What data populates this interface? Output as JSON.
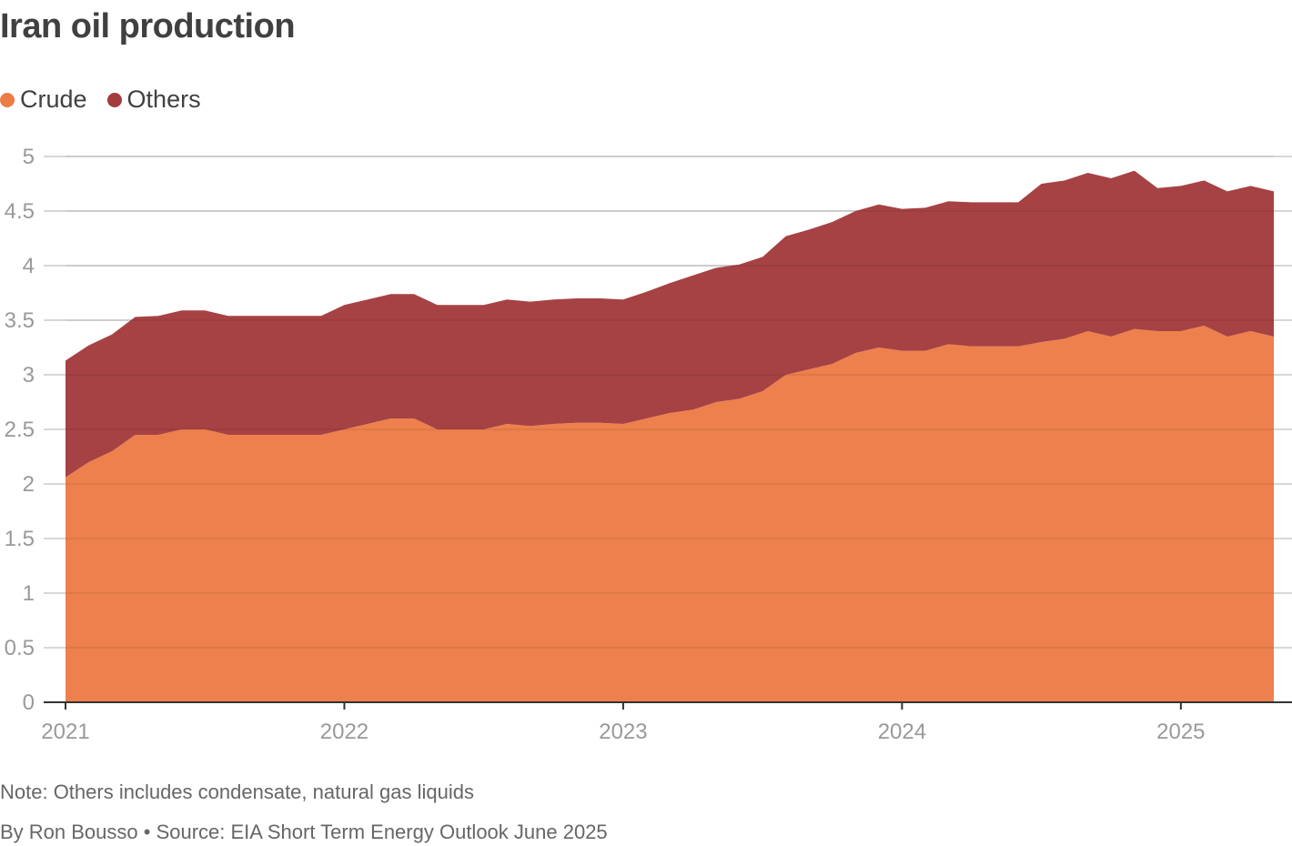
{
  "title": "Iran oil production",
  "legend": {
    "crude_label": "Crude",
    "others_label": "Others"
  },
  "note": "Note: Others includes condensate, natural gas liquids",
  "source": "By Ron Bousso • Source: EIA Short Term Energy Outlook June 2025",
  "colors": {
    "crude": "#EC7C46",
    "others": "#A33C3E",
    "grid": "#cccccc",
    "axis": "#333333",
    "tick_text": "#999999"
  },
  "chart_data": {
    "type": "area",
    "stacked": true,
    "title": "Iran oil production",
    "xlabel": "",
    "ylabel": "",
    "ylim": [
      0,
      5
    ],
    "yticks": [
      "0",
      "0.5",
      "1",
      "1.5",
      "2",
      "2.5",
      "3",
      "3.5",
      "4",
      "4.5",
      "5"
    ],
    "xticks": [
      "2021",
      "2022",
      "2023",
      "2024",
      "2025"
    ],
    "x_start": "2021-01",
    "x_end": "2025-05",
    "x": [
      "2021-01",
      "2021-02",
      "2021-03",
      "2021-04",
      "2021-05",
      "2021-06",
      "2021-07",
      "2021-08",
      "2021-09",
      "2021-10",
      "2021-11",
      "2021-12",
      "2022-01",
      "2022-02",
      "2022-03",
      "2022-04",
      "2022-05",
      "2022-06",
      "2022-07",
      "2022-08",
      "2022-09",
      "2022-10",
      "2022-11",
      "2022-12",
      "2023-01",
      "2023-02",
      "2023-03",
      "2023-04",
      "2023-05",
      "2023-06",
      "2023-07",
      "2023-08",
      "2023-09",
      "2023-10",
      "2023-11",
      "2023-12",
      "2024-01",
      "2024-02",
      "2024-03",
      "2024-04",
      "2024-05",
      "2024-06",
      "2024-07",
      "2024-08",
      "2024-09",
      "2024-10",
      "2024-11",
      "2024-12",
      "2025-01",
      "2025-02",
      "2025-03",
      "2025-04",
      "2025-05"
    ],
    "series": [
      {
        "name": "Crude",
        "values": [
          2.06,
          2.2,
          2.3,
          2.45,
          2.45,
          2.5,
          2.5,
          2.45,
          2.45,
          2.45,
          2.45,
          2.45,
          2.5,
          2.55,
          2.6,
          2.6,
          2.5,
          2.5,
          2.5,
          2.55,
          2.53,
          2.55,
          2.56,
          2.56,
          2.55,
          2.6,
          2.65,
          2.68,
          2.75,
          2.78,
          2.85,
          3.0,
          3.05,
          3.1,
          3.2,
          3.25,
          3.22,
          3.22,
          3.28,
          3.26,
          3.26,
          3.26,
          3.3,
          3.33,
          3.4,
          3.35,
          3.42,
          3.4,
          3.4,
          3.45,
          3.35,
          3.4,
          3.35
        ]
      },
      {
        "name": "Others",
        "values": [
          1.07,
          1.07,
          1.07,
          1.08,
          1.09,
          1.09,
          1.09,
          1.09,
          1.09,
          1.09,
          1.09,
          1.09,
          1.14,
          1.14,
          1.14,
          1.14,
          1.14,
          1.14,
          1.14,
          1.14,
          1.14,
          1.14,
          1.14,
          1.14,
          1.14,
          1.16,
          1.19,
          1.23,
          1.23,
          1.23,
          1.23,
          1.27,
          1.28,
          1.3,
          1.3,
          1.31,
          1.3,
          1.31,
          1.31,
          1.32,
          1.32,
          1.32,
          1.45,
          1.45,
          1.45,
          1.45,
          1.45,
          1.31,
          1.33,
          1.33,
          1.33,
          1.33,
          1.33
        ]
      }
    ],
    "grid": true,
    "legend_position": "top-left"
  }
}
